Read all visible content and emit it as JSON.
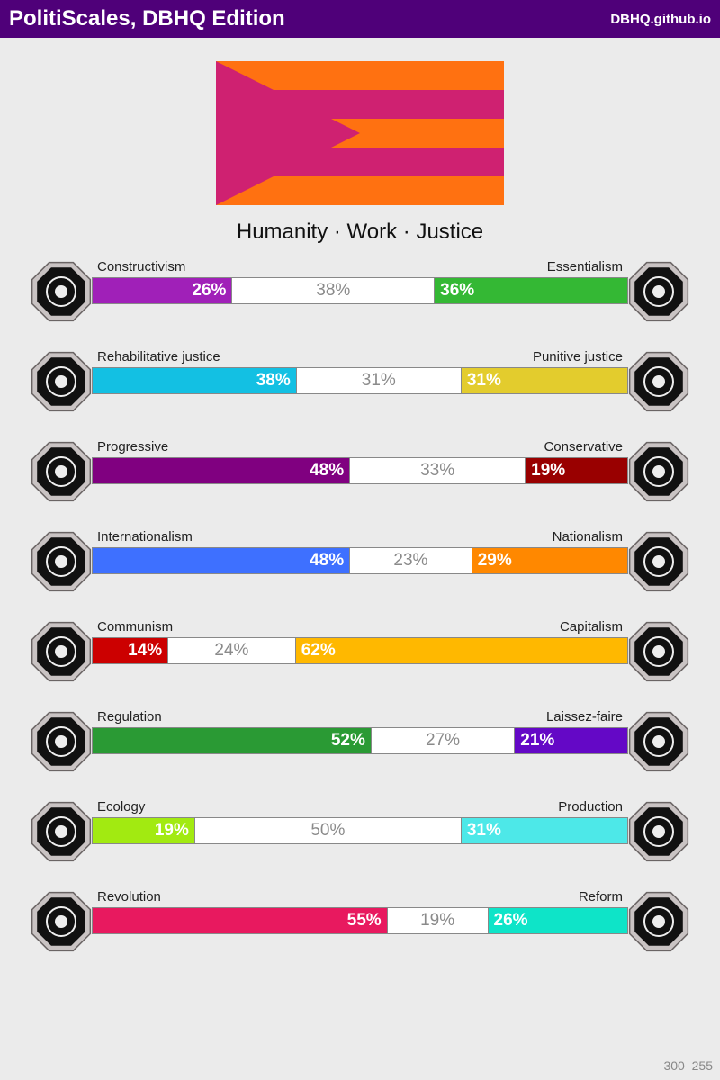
{
  "header": {
    "title": "PolitiScales, DBHQ Edition",
    "site": "DBHQ.github.io"
  },
  "flag": {
    "stripe_color": "#ff7111",
    "chevron_color": "#cf2171"
  },
  "slogan": "Humanity · Work · Justice",
  "axes": [
    {
      "left_label": "Constructivism",
      "right_label": "Essentialism",
      "left_pct": 26,
      "mid_pct": 38,
      "right_pct": 36,
      "left_text": "26%",
      "mid_text": "38%",
      "right_text": "36%",
      "left_color": "#a020b8",
      "right_color": "#34b834",
      "left_icon": "vitruvian-eye-icon",
      "right_icon": "chrysanthemum-icon"
    },
    {
      "left_label": "Rehabilitative justice",
      "right_label": "Punitive justice",
      "left_pct": 38,
      "mid_pct": 31,
      "right_pct": 31,
      "left_text": "38%",
      "mid_text": "31%",
      "right_text": "31%",
      "left_color": "#13c0e3",
      "right_color": "#e3cc2d",
      "left_icon": "handshake-icon",
      "right_icon": "prison-bars-icon"
    },
    {
      "left_label": "Progressive",
      "right_label": "Conservative",
      "left_pct": 48,
      "mid_pct": 33,
      "right_pct": 19,
      "left_text": "48%",
      "mid_text": "33%",
      "right_text": "19%",
      "left_color": "#800080",
      "right_color": "#990000",
      "left_icon": "comet-icon",
      "right_icon": "quill-pen-icon"
    },
    {
      "left_label": "Internationalism",
      "right_label": "Nationalism",
      "left_pct": 48,
      "mid_pct": 23,
      "right_pct": 29,
      "left_text": "48%",
      "mid_text": "23%",
      "right_text": "29%",
      "left_color": "#3e70ff",
      "right_color": "#ff8800",
      "left_icon": "globe-laurel-icon",
      "right_icon": "waving-flag-icon"
    },
    {
      "left_label": "Communism",
      "right_label": "Capitalism",
      "left_pct": 14,
      "mid_pct": 24,
      "right_pct": 62,
      "left_text": "14%",
      "mid_text": "24%",
      "right_text": "62%",
      "left_color": "#cc0000",
      "right_color": "#ffb800",
      "left_icon": "hammer-sickle-icon",
      "right_icon": "money-bag-icon"
    },
    {
      "left_label": "Regulation",
      "right_label": "Laissez-faire",
      "left_pct": 52,
      "mid_pct": 27,
      "right_pct": 21,
      "left_text": "52%",
      "mid_text": "27%",
      "right_text": "21%",
      "left_color": "#2a9a34",
      "right_color": "#6408c6",
      "left_icon": "ruler-compass-icon",
      "right_icon": "butterflies-icon"
    },
    {
      "left_label": "Ecology",
      "right_label": "Production",
      "left_pct": 19,
      "mid_pct": 50,
      "right_pct": 31,
      "left_text": "19%",
      "mid_text": "50%",
      "right_text": "31%",
      "left_color": "#a2ea11",
      "right_color": "#4de8e8",
      "left_icon": "sprout-icon",
      "right_icon": "gear-icon"
    },
    {
      "left_label": "Revolution",
      "right_label": "Reform",
      "left_pct": 55,
      "mid_pct": 19,
      "right_pct": 26,
      "left_text": "55%",
      "mid_text": "19%",
      "right_text": "26%",
      "left_color": "#e8195f",
      "right_color": "#0ee4c8",
      "left_icon": "raised-fist-icon",
      "right_icon": "parliament-icon"
    }
  ],
  "footer": {
    "code": "300–255"
  }
}
